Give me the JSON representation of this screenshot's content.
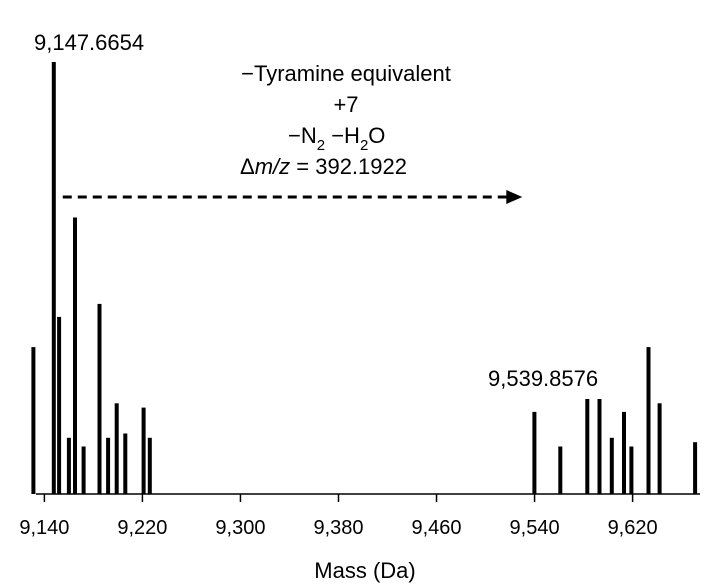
{
  "chart_data": {
    "type": "bar",
    "xlabel": "Mass (Da)",
    "ylabel": "",
    "xlim": [
      9125,
      9675
    ],
    "ylim": [
      0,
      100
    ],
    "x_ticks": [
      9140,
      9220,
      9300,
      9380,
      9460,
      9540,
      9620
    ],
    "x_tick_labels": [
      "9,140",
      "9,220",
      "9,300",
      "9,380",
      "9,460",
      "9,540",
      "9,620"
    ],
    "grid": false,
    "legend": "none",
    "series": [
      {
        "x": [
          9131,
          9147.6654,
          9152,
          9160,
          9165,
          9172,
          9185,
          9192,
          9199,
          9206,
          9221,
          9226,
          9539.8576,
          9561,
          9583,
          9593,
          9603,
          9613,
          9619,
          9633,
          9642,
          9671
        ],
        "values": [
          34,
          100,
          41,
          13,
          64,
          11,
          44,
          13,
          21,
          14,
          20,
          13,
          19,
          11,
          22,
          22,
          13,
          19,
          11,
          34,
          21,
          12
        ]
      }
    ],
    "peak_labels": [
      {
        "x": 9147.6654,
        "text": "9,147.6654"
      },
      {
        "x": 9539.8576,
        "text": "9,539.8576"
      }
    ],
    "annotation": {
      "line1": "−Tyramine equivalent",
      "line2": "+7",
      "line3_a": "−N",
      "line3_sub1": "2",
      "line3_b": " −H",
      "line3_sub2": "2",
      "line3_c": "O",
      "line4_delta": "Δ",
      "line4_mz": "m/z",
      "line4_val": " = 392.1922",
      "arrow_from": 9155,
      "arrow_to": 9530
    }
  }
}
